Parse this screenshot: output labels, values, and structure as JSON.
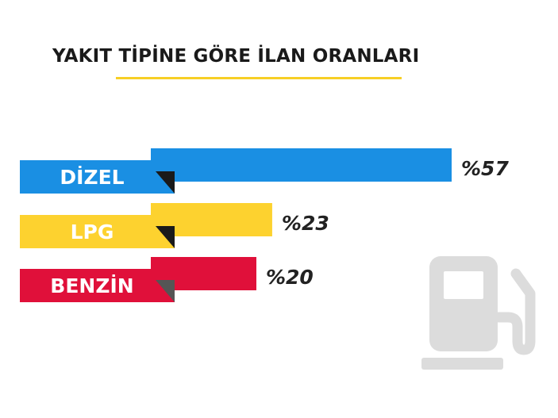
{
  "chart_data": {
    "type": "bar",
    "orientation": "horizontal",
    "title": "YAKIT TİPİNE GÖRE İLAN ORANLARI",
    "categories": [
      "DİZEL",
      "LPG",
      "BENZİN"
    ],
    "values": [
      57,
      23,
      20
    ],
    "value_labels": [
      "%57",
      "%23",
      "%20"
    ],
    "colors": [
      "#1a8fe3",
      "#fdd22f",
      "#e0103a"
    ],
    "xlim": [
      0,
      57
    ],
    "grid": false,
    "legend": "none"
  },
  "decor": {
    "underline_color": "#f7cf25",
    "fold_color": "#1a1a1a",
    "fold_color_last": "#555555",
    "icon": "fuel-pump-icon",
    "icon_color": "#dcdcdc"
  }
}
